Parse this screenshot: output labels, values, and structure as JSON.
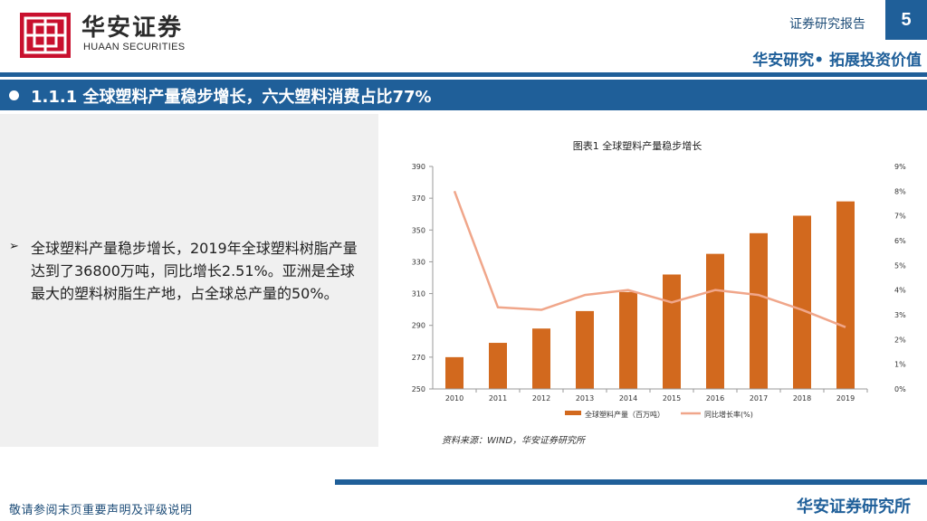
{
  "header": {
    "logo_cn": "华安证券",
    "logo_en": "HUAAN SECURITIES",
    "report_type": "证券研究报告",
    "page_number": "5",
    "tagline": "华安研究• 拓展投资价值"
  },
  "section": {
    "title": "1.1.1 全球塑料产量稳步增长，六大塑料消费占比77%"
  },
  "body": {
    "bullet": "全球塑料产量稳步增长，2019年全球塑料树脂产量达到了36800万吨，同比增长2.51%。亚洲是全球最大的塑料树脂生产地，占全球总产量的50%。"
  },
  "chart_data": {
    "type": "bar",
    "title": "图表1 全球塑料产量稳步增长",
    "categories": [
      "2010",
      "2011",
      "2012",
      "2013",
      "2014",
      "2015",
      "2016",
      "2017",
      "2018",
      "2019"
    ],
    "series": [
      {
        "name": "全球塑料产量（百万吨）",
        "kind": "bar",
        "axis": "left",
        "color": "#d2691e",
        "values": [
          270,
          279,
          288,
          299,
          311,
          322,
          335,
          348,
          359,
          368
        ]
      },
      {
        "name": "同比增长率(%)",
        "kind": "line",
        "axis": "right",
        "color": "#f0a68a",
        "values": [
          8.0,
          3.3,
          3.2,
          3.8,
          4.0,
          3.5,
          4.0,
          3.8,
          3.2,
          2.5
        ]
      }
    ],
    "left_axis": {
      "min": 250,
      "max": 390,
      "ticks": [
        250,
        270,
        290,
        310,
        330,
        350,
        370,
        390
      ]
    },
    "right_axis": {
      "min": 0,
      "max": 9,
      "ticks": [
        "0%",
        "1%",
        "2%",
        "3%",
        "4%",
        "5%",
        "6%",
        "7%",
        "8%",
        "9%"
      ]
    },
    "legend_position": "bottom",
    "source": "资料来源：WIND，华安证券研究所"
  },
  "footer": {
    "disclaimer": "敬请参阅末页重要声明及评级说明",
    "company": "华安证券研究所"
  }
}
